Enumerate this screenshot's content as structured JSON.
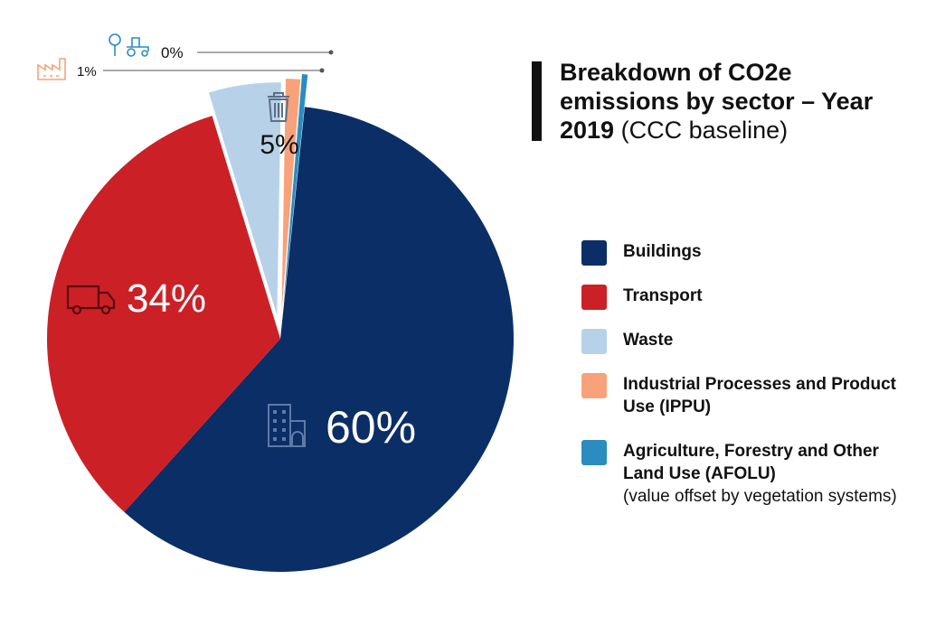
{
  "title": {
    "bold": "Breakdown of CO2e emissions by sector – Year 2019",
    "normal": "(CCC baseline)"
  },
  "chart_data": {
    "type": "pie",
    "categories": [
      "Buildings",
      "Transport",
      "Waste",
      "Industrial Processes and Product Use (IPPU)",
      "Agriculture, Forestry and Other Land Use (AFOLU)"
    ],
    "values": [
      60,
      34,
      5,
      1,
      0
    ],
    "data_labels": [
      "60%",
      "34%",
      "5%",
      "1%",
      "0%"
    ],
    "colors": [
      "#0b2e66",
      "#cc2027",
      "#b7d2e8",
      "#f7a27a",
      "#2b8cbf"
    ],
    "icons": [
      "building-icon",
      "truck-icon",
      "trash-bin-icon",
      "factory-icon",
      "tree-tractor-icon"
    ],
    "legend_placement": "right",
    "legend_notes": [
      "",
      "",
      "",
      "",
      "(value offset by vegetation systems)"
    ]
  }
}
